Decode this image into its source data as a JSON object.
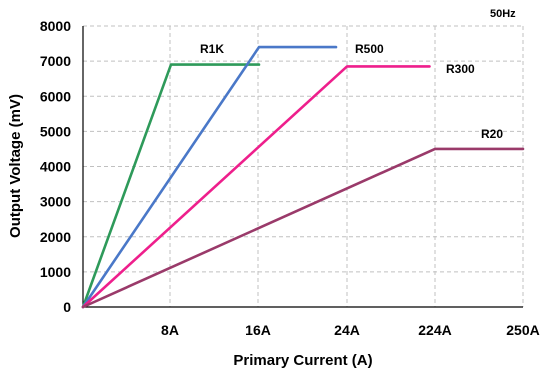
{
  "chart_data": {
    "type": "line",
    "title": "",
    "note": "50Hz",
    "xlabel": "Primary Current (A)",
    "ylabel": "Output Voltage (mV)",
    "x_ticks": [
      "8A",
      "16A",
      "24A",
      "224A",
      "250A"
    ],
    "ylim": [
      0,
      8000
    ],
    "y_ticks": [
      0,
      1000,
      2000,
      3000,
      4000,
      5000,
      6000,
      7000,
      8000
    ],
    "grid": true,
    "series": [
      {
        "name": "R1K",
        "color": "#2e9a5a",
        "points": [
          [
            0,
            0
          ],
          [
            8,
            6900
          ],
          [
            16,
            6900
          ]
        ]
      },
      {
        "name": "R500",
        "color": "#4a78c8",
        "points": [
          [
            0,
            0
          ],
          [
            16,
            7400
          ],
          [
            23,
            7400
          ]
        ]
      },
      {
        "name": "R300",
        "color": "#ee1f8c",
        "points": [
          [
            0,
            0
          ],
          [
            24,
            6850
          ],
          [
            31.5,
            6850
          ]
        ]
      },
      {
        "name": "R20",
        "color": "#9a3a6a",
        "points": [
          [
            0,
            0
          ],
          [
            32,
            4500
          ],
          [
            40,
            4500
          ]
        ]
      }
    ]
  }
}
